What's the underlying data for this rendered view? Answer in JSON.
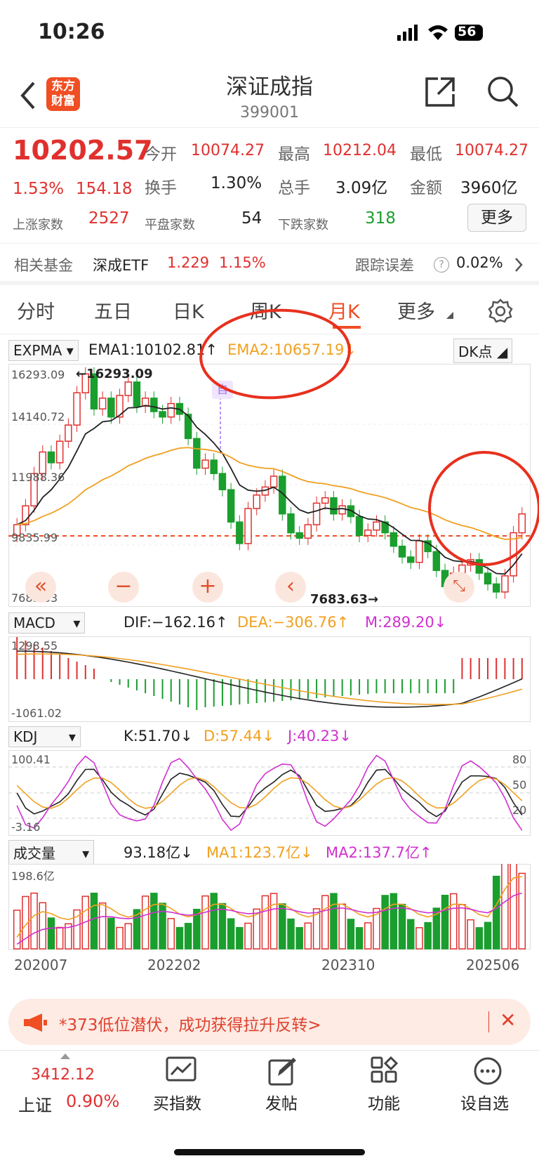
{
  "status": {
    "time": "10:26",
    "battery": "56"
  },
  "header": {
    "title": "深证成指",
    "code": "399001",
    "logo_line1": "东方",
    "logo_line2": "财富"
  },
  "quote": {
    "price": "10202.57",
    "pct": "1.53%",
    "chg": "154.18",
    "open_label": "今开",
    "open": "10074.27",
    "high_label": "最高",
    "high": "10212.04",
    "low_label": "最低",
    "low": "10074.27",
    "turnover_label": "换手",
    "turnover": "1.30%",
    "vol_label": "总手",
    "vol": "3.09亿",
    "amt_label": "金额",
    "amt": "3960亿",
    "up_label": "上涨家数",
    "up": "2527",
    "flat_label": "平盘家数",
    "flat": "54",
    "down_label": "下跌家数",
    "down": "318",
    "more": "更多"
  },
  "fund": {
    "label": "相关基金",
    "name": "深成ETF",
    "price": "1.229",
    "pct": "1.15%",
    "track_label": "跟踪误差",
    "track": "0.02%"
  },
  "tabs": [
    "分时",
    "五日",
    "日K",
    "周K",
    "月K",
    "更多"
  ],
  "ema": {
    "sel": "EXPMA",
    "ema1": "EMA1:10102.81↑",
    "ema2": "EMA2:10657.19↓",
    "dk": "DK点",
    "max": "16293.09",
    "lv2": "14140.72",
    "lv3": "11988.36",
    "lv4": "9835.99",
    "min": "7683.63",
    "hi_mark": "←16293.09",
    "lo_mark": "7683.63→",
    "self_tag": "自"
  },
  "macd": {
    "sel": "MACD",
    "dif": "DIF:−162.16↑",
    "dea": "DEA:−306.76↑",
    "m": "M:289.20↓",
    "max": "1298.55",
    "min": "-1061.02"
  },
  "kdj": {
    "sel": "KDJ",
    "k": "K:51.70↓",
    "d": "D:57.44↓",
    "j": "J:40.23↓",
    "max": "100.41",
    "min": "-3.16",
    "l80": "80",
    "l50": "50",
    "l20": "20"
  },
  "vol": {
    "sel": "成交量",
    "v": "93.18亿↓",
    "ma1": "MA1:123.7亿↓",
    "ma2": "MA2:137.7亿↑",
    "max": "198.6亿"
  },
  "dates": [
    "202007",
    "202202",
    "202310",
    "202506"
  ],
  "ad": {
    "text": "*373低位潜伏，成功获得拉升反转>"
  },
  "bottom": {
    "index_price": "3412.12",
    "index_name": "上证",
    "index_pct": "0.90%",
    "b1": "买指数",
    "b2": "发帖",
    "b3": "功能",
    "b4": "设自选"
  },
  "colors": {
    "up": "#e0302e",
    "down": "#1a9e2e",
    "ema2": "#f0a020",
    "accent": "#f04e23"
  }
}
